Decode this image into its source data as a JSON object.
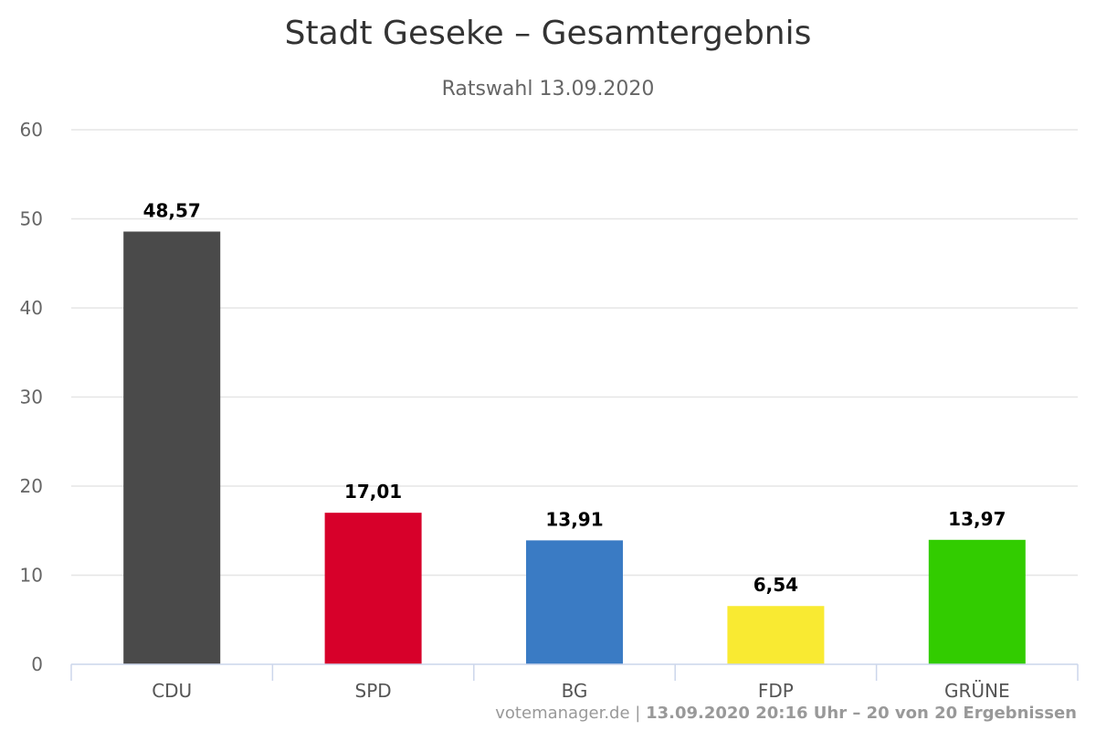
{
  "chart_data": {
    "type": "bar",
    "title": "Stadt Geseke – Gesamtergebnis",
    "subtitle": "Ratswahl 13.09.2020",
    "categories": [
      "CDU",
      "SPD",
      "BG",
      "FDP",
      "GRÜNE"
    ],
    "values": [
      48.57,
      17.01,
      13.91,
      6.54,
      13.97
    ],
    "data_labels": [
      "48,57",
      "17,01",
      "13,91",
      "6,54",
      "13,97"
    ],
    "colors": [
      "#4a4a4a",
      "#d7002a",
      "#3a7bc4",
      "#f9ea32",
      "#32cc00"
    ],
    "ylim": [
      0,
      60
    ],
    "yticks": [
      0,
      10,
      20,
      30,
      40,
      50,
      60
    ],
    "grid": true,
    "legend": false
  },
  "credits": {
    "source": "votemanager.de",
    "separator": " | ",
    "info": "13.09.2020 20:16 Uhr – 20 von 20 Ergebnissen"
  }
}
